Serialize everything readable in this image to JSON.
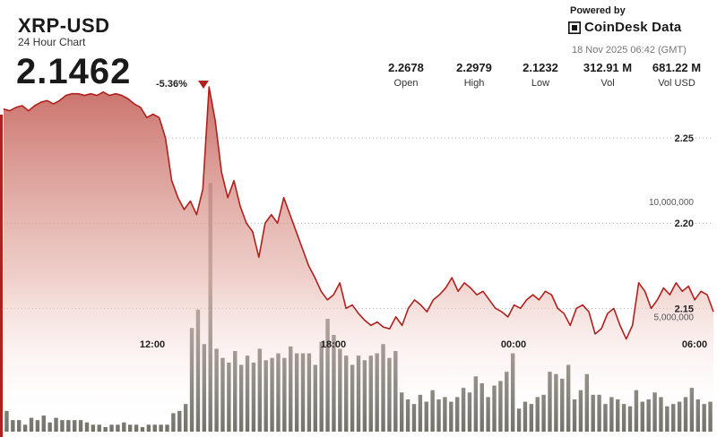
{
  "header": {
    "title": "XRP-USD",
    "subtitle": "24 Hour Chart",
    "price": "2.1462",
    "change": "-5.36%"
  },
  "brand": {
    "powered_by": "Powered by",
    "name": "CoinDesk Data",
    "timestamp": "18 Nov 2025 06:42 (GMT)"
  },
  "stats": [
    {
      "value": "2.2678",
      "label": "Open"
    },
    {
      "value": "2.2979",
      "label": "High"
    },
    {
      "value": "2.1232",
      "label": "Low"
    },
    {
      "value": "312.91 M",
      "label": "Vol"
    },
    {
      "value": "681.22 M",
      "label": "Vol USD"
    }
  ],
  "colors": {
    "line": "#b0201c",
    "area_top": "#c76a62",
    "bar": "#5a5a50",
    "accent": "#b0201c"
  },
  "chart_data": {
    "type": "area",
    "price_series": {
      "y": [
        2.267,
        2.266,
        2.268,
        2.269,
        2.266,
        2.269,
        2.271,
        2.272,
        2.27,
        2.272,
        2.275,
        2.276,
        2.276,
        2.275,
        2.276,
        2.275,
        2.277,
        2.275,
        2.276,
        2.275,
        2.273,
        2.27,
        2.268,
        2.262,
        2.264,
        2.262,
        2.25,
        2.225,
        2.215,
        2.208,
        2.213,
        2.205,
        2.22,
        2.28,
        2.26,
        2.23,
        2.215,
        2.225,
        2.21,
        2.2,
        2.195,
        2.18,
        2.2,
        2.205,
        2.2,
        2.215,
        2.205,
        2.195,
        2.185,
        2.175,
        2.168,
        2.16,
        2.155,
        2.158,
        2.165,
        2.15,
        2.152,
        2.147,
        2.143,
        2.14,
        2.142,
        2.139,
        2.138,
        2.145,
        2.14,
        2.15,
        2.155,
        2.152,
        2.148,
        2.155,
        2.158,
        2.162,
        2.168,
        2.16,
        2.165,
        2.162,
        2.158,
        2.16,
        2.155,
        2.15,
        2.148,
        2.145,
        2.152,
        2.15,
        2.155,
        2.158,
        2.155,
        2.16,
        2.158,
        2.15,
        2.147,
        2.14,
        2.15,
        2.152,
        2.148,
        2.135,
        2.138,
        2.147,
        2.15,
        2.14,
        2.132,
        2.14,
        2.165,
        2.16,
        2.15,
        2.155,
        2.162,
        2.158,
        2.165,
        2.16,
        2.163,
        2.155,
        2.16,
        2.158,
        2.148
      ],
      "ylim": [
        2.085,
        2.31
      ],
      "yticks": [
        "2.25",
        "2.20",
        "2.15"
      ]
    },
    "volume_series": {
      "values": [
        0.9,
        0.5,
        0.5,
        0.3,
        0.6,
        0.5,
        0.7,
        0.4,
        0.6,
        0.5,
        0.5,
        0.5,
        0.5,
        0.4,
        0.3,
        0.3,
        0.2,
        0.3,
        0.3,
        0.4,
        0.3,
        0.3,
        0.2,
        0.3,
        0.3,
        0.3,
        0.3,
        0.8,
        0.9,
        1.2,
        4.5,
        5.3,
        3.8,
        10.8,
        3.6,
        3.2,
        3.0,
        3.5,
        2.9,
        3.3,
        3.0,
        3.6,
        3.1,
        3.2,
        3.4,
        3.2,
        3.7,
        3.4,
        3.4,
        3.4,
        2.9,
        3.9,
        4.9,
        4.2,
        3.6,
        3.3,
        2.9,
        3.3,
        3.1,
        3.3,
        3.4,
        3.8,
        3.2,
        3.5,
        1.7,
        1.4,
        1.2,
        1.6,
        1.3,
        1.8,
        1.4,
        1.5,
        1.3,
        1.5,
        1.9,
        1.7,
        2.4,
        2.1,
        1.5,
        2.0,
        2.2,
        2.6,
        3.4,
        1.0,
        1.3,
        1.2,
        1.5,
        1.6,
        2.6,
        2.5,
        2.3,
        2.9,
        1.4,
        1.8,
        2.5,
        1.6,
        1.6,
        1.2,
        1.5,
        1.4,
        1.2,
        1.1,
        1.8,
        1.3,
        1.4,
        1.7,
        1.5,
        1.1,
        1.2,
        1.3,
        1.5,
        1.9,
        1.4,
        1.2,
        1.3
      ],
      "ylim": [
        0,
        13.3
      ],
      "yticks": [
        "10,000,000",
        "5,000,000"
      ]
    },
    "xticks": [
      "12:00",
      "18:00",
      "00:00",
      "06:00"
    ]
  }
}
